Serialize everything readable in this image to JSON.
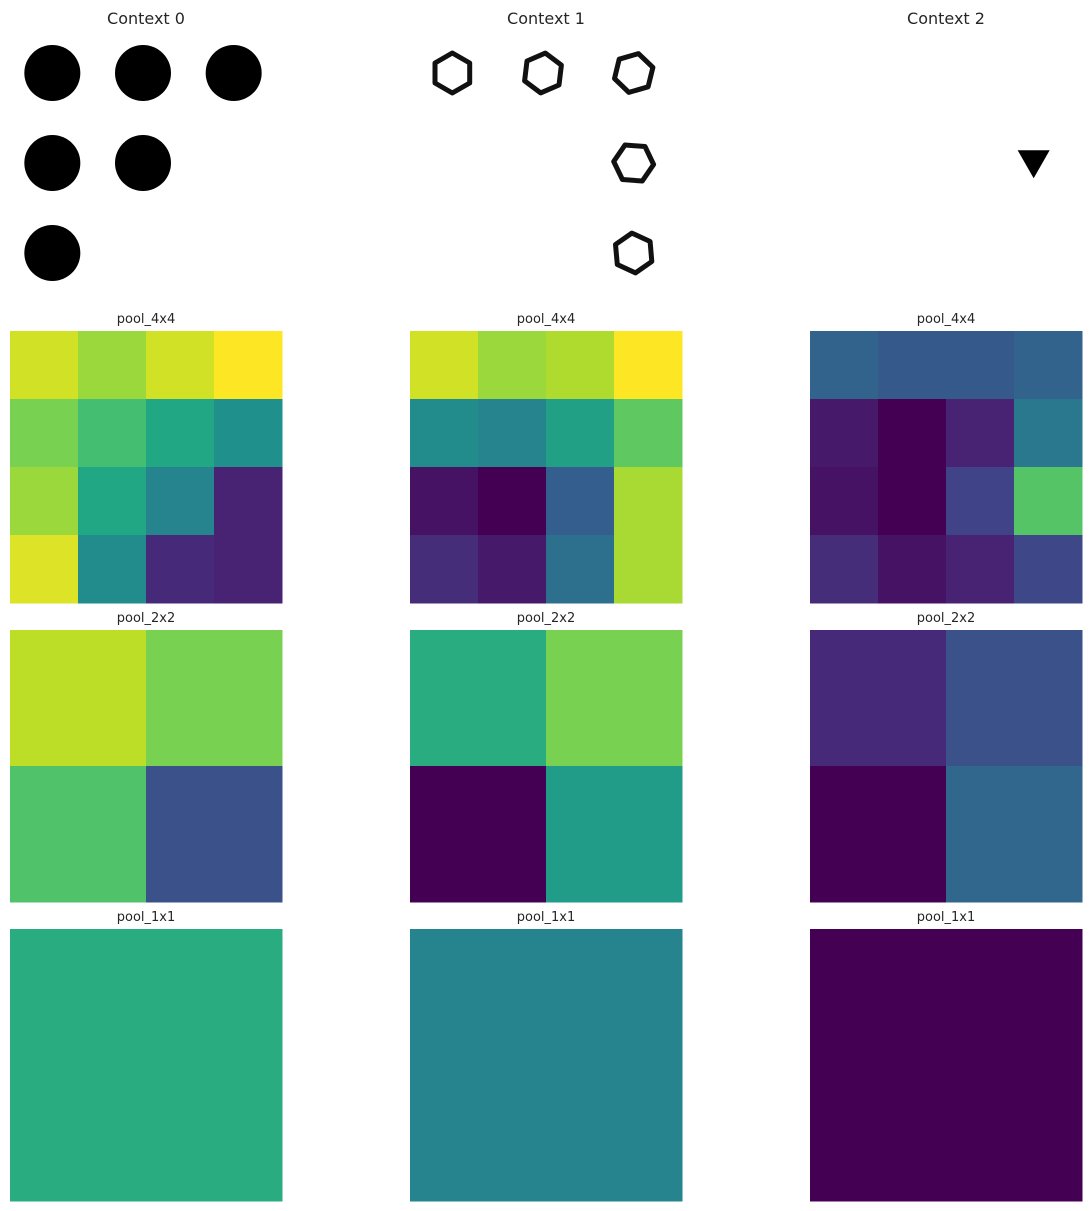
{
  "chart_data": {
    "type": "heatmap",
    "colormap": "viridis",
    "contexts": [
      {
        "title": "Context 0",
        "shape_panel": {
          "rows": 3,
          "cols": 3,
          "cells": [
            [
              "circle",
              "circle",
              "circle"
            ],
            [
              "circle",
              "circle",
              ""
            ],
            [
              "circle",
              "",
              ""
            ]
          ]
        },
        "pools": [
          {
            "title": "pool_4x4",
            "values": [
              [
                0.93,
                0.85,
                0.93,
                1.0
              ],
              [
                0.8,
                0.7,
                0.6,
                0.5
              ],
              [
                0.85,
                0.6,
                0.45,
                0.1
              ],
              [
                0.95,
                0.48,
                0.12,
                0.1
              ]
            ]
          },
          {
            "title": "pool_2x2",
            "values": [
              [
                0.9,
                0.8
              ],
              [
                0.72,
                0.25
              ]
            ]
          },
          {
            "title": "pool_1x1",
            "values": [
              [
                0.62
              ]
            ]
          }
        ]
      },
      {
        "title": "Context 1",
        "shape_panel": {
          "rows": 3,
          "cols": 3,
          "cells": [
            [
              "hexagon",
              "hexagon",
              "hexagon"
            ],
            [
              "",
              "",
              "hexagon"
            ],
            [
              "",
              "",
              "hexagon"
            ]
          ]
        },
        "pools": [
          {
            "title": "pool_4x4",
            "values": [
              [
                0.93,
                0.85,
                0.88,
                1.0
              ],
              [
                0.48,
                0.45,
                0.57,
                0.75
              ],
              [
                0.05,
                0.0,
                0.3,
                0.87
              ],
              [
                0.13,
                0.07,
                0.37,
                0.87
              ]
            ]
          },
          {
            "title": "pool_2x2",
            "values": [
              [
                0.62,
                0.8
              ],
              [
                0.0,
                0.55
              ]
            ]
          },
          {
            "title": "pool_1x1",
            "values": [
              [
                0.45
              ]
            ]
          }
        ]
      },
      {
        "title": "Context 2",
        "shape_panel": {
          "rows": 3,
          "cols": 3,
          "cells": [
            [
              "",
              "",
              ""
            ],
            [
              "",
              "",
              "triangle-down"
            ],
            [
              "",
              "",
              ""
            ]
          ]
        },
        "pools": [
          {
            "title": "pool_4x4",
            "values": [
              [
                0.32,
                0.28,
                0.28,
                0.32
              ],
              [
                0.07,
                0.0,
                0.1,
                0.4
              ],
              [
                0.05,
                0.0,
                0.2,
                0.73
              ],
              [
                0.13,
                0.05,
                0.1,
                0.22
              ]
            ]
          },
          {
            "title": "pool_2x2",
            "values": [
              [
                0.12,
                0.25
              ],
              [
                0.0,
                0.33
              ]
            ]
          },
          {
            "title": "pool_1x1",
            "values": [
              [
                0.0
              ]
            ]
          }
        ]
      }
    ]
  }
}
